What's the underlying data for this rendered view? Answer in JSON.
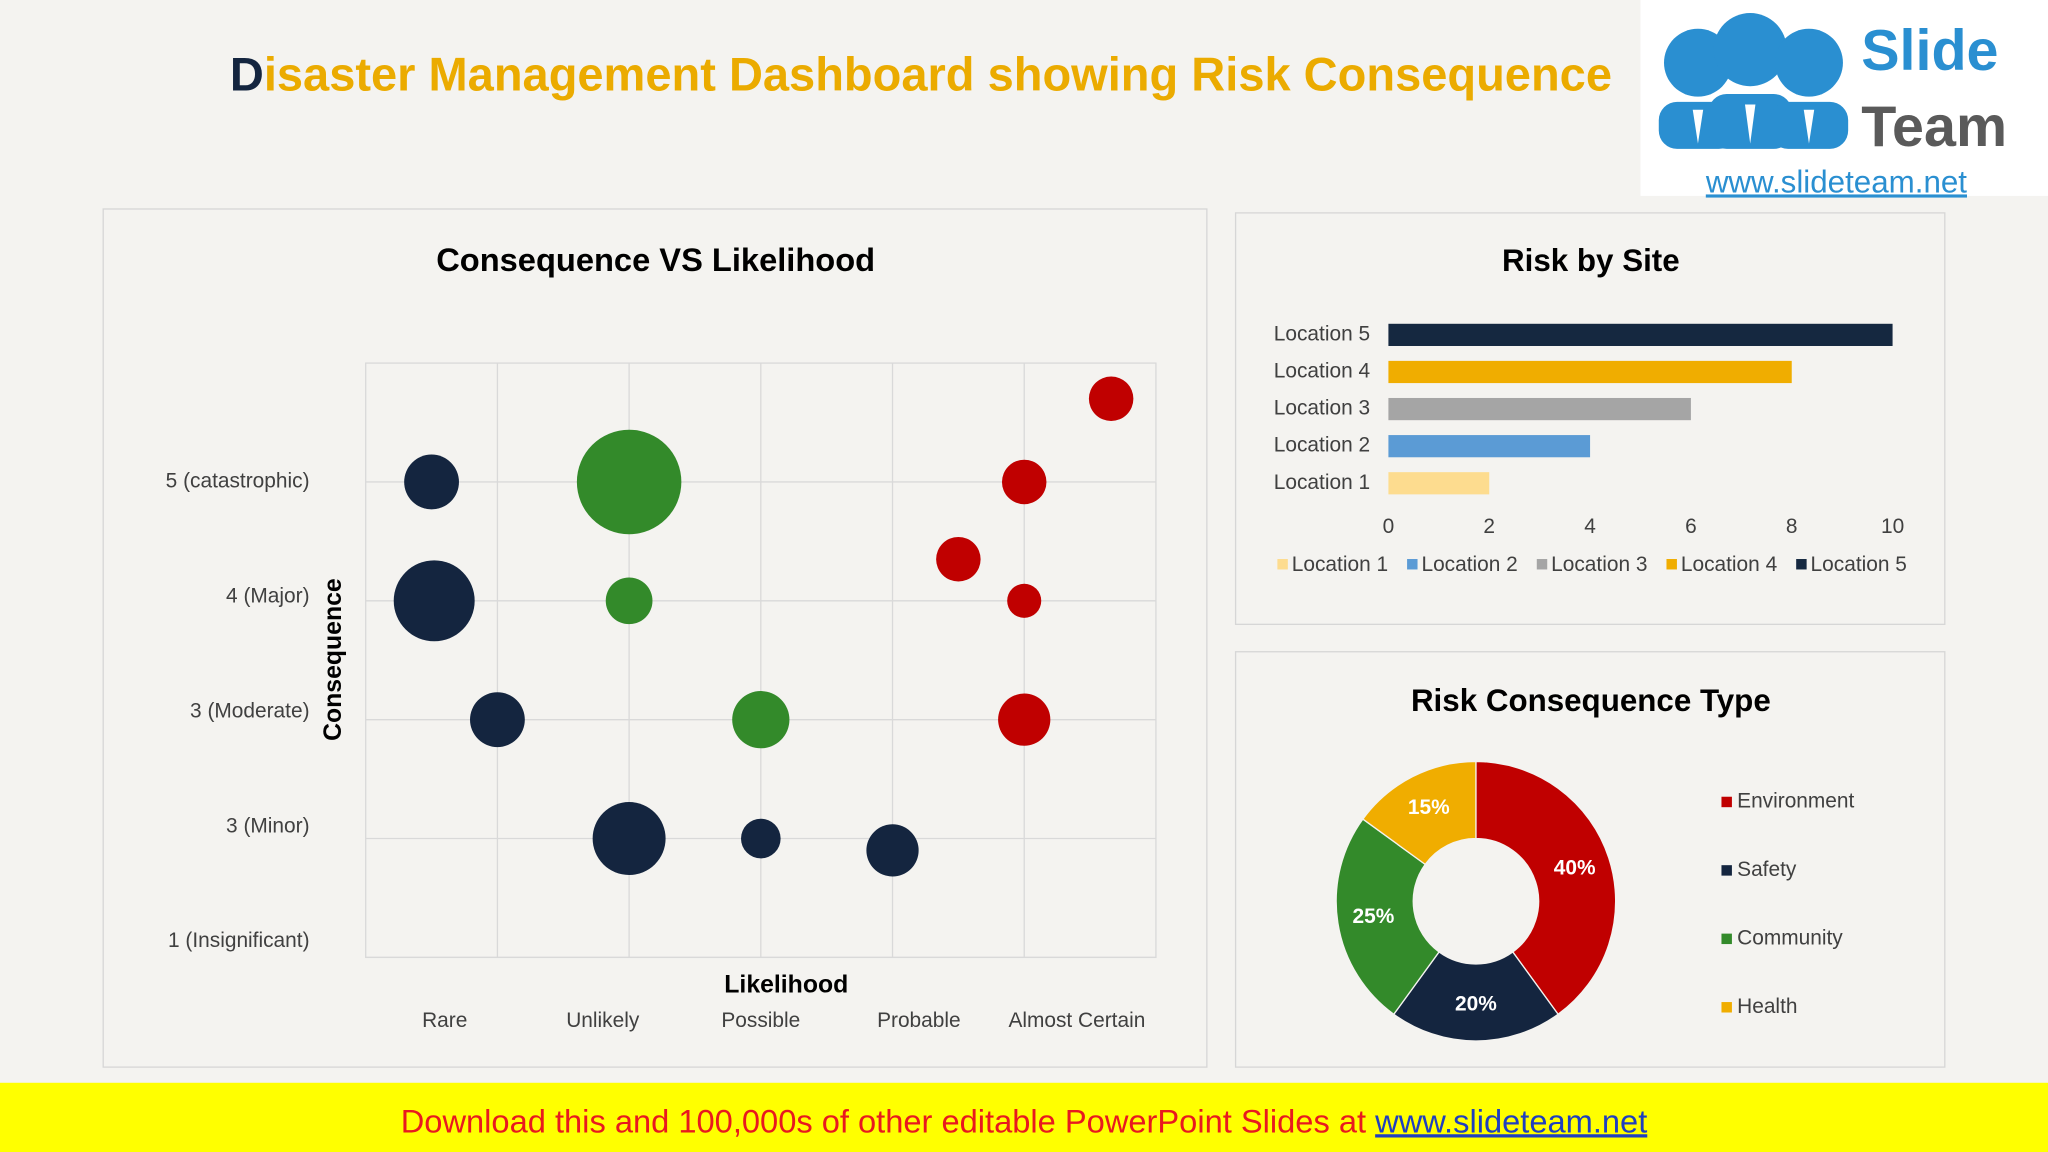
{
  "header": {
    "title_first": "D",
    "title": "isaster Management Dashboard showing Risk Consequence"
  },
  "logo": {
    "word1": "Slide",
    "word2": "Team",
    "url": "www.slideteam.net"
  },
  "banner": {
    "text": "Download this and 100,000s of other editable PowerPoint Slides at ",
    "link": "www.slideteam.net"
  },
  "chart_data": [
    {
      "type": "bubble",
      "title": "Consequence VS Likelihood",
      "x_label": "Likelihood",
      "y_label": "Consequence",
      "categories": [
        "Rare",
        "Unlikely",
        "Possible",
        "Probable",
        "Almost Certain"
      ],
      "xlim": [
        0,
        6
      ],
      "xgrid": [
        1,
        2,
        3,
        4,
        5
      ],
      "ylim": [
        0,
        5
      ],
      "yticks": [
        {
          "value": 0,
          "label": "1 (Insignificant)"
        },
        {
          "value": 1,
          "label": "3 (Minor)"
        },
        {
          "value": 2,
          "label": "3 (Moderate)"
        },
        {
          "value": 3,
          "label": "4 (Major)"
        },
        {
          "value": 4,
          "label": "5 (catastrophic)"
        }
      ],
      "grid": true,
      "series": [
        {
          "color": "#14253f",
          "x": [
            0.5,
            0.52,
            1,
            2,
            3,
            4
          ],
          "values": [
            4,
            3,
            2,
            1,
            1,
            0.9
          ],
          "sizes": [
            4.4,
            9.6,
            4.4,
            7.8,
            2.3,
            4
          ]
        },
        {
          "color": "#338a2a",
          "x": [
            2,
            2,
            3
          ],
          "values": [
            4,
            3,
            2
          ],
          "sizes": [
            16,
            3.2,
            4.8
          ]
        },
        {
          "color": "#c00000",
          "x": [
            5.66,
            5,
            4.5,
            5,
            5
          ],
          "values": [
            4.7,
            4,
            3.35,
            3,
            2
          ],
          "sizes": [
            2.9,
            2.9,
            2.9,
            1.7,
            4
          ]
        }
      ]
    },
    {
      "type": "barh",
      "title": "Risk by Site",
      "categories": [
        "Location 1",
        "Location 2",
        "Location 3",
        "Location 4",
        "Location 5"
      ],
      "values": [
        2,
        4,
        6,
        8,
        10
      ],
      "colors": [
        "#fddc8f",
        "#5b9bd5",
        "#a5a5a5",
        "#f0ad00",
        "#152840"
      ],
      "xlim": [
        0,
        10
      ],
      "xticks": [
        0,
        2,
        4,
        6,
        8,
        10
      ],
      "legend": "bottom"
    },
    {
      "type": "donut",
      "title": "Risk Consequence Type",
      "categories": [
        "Environment",
        "Safety",
        "Community",
        "Health"
      ],
      "values": [
        40,
        20,
        25,
        15
      ],
      "value_labels": [
        "40%",
        "20%",
        "25%",
        "15%"
      ],
      "colors": [
        "#c00000",
        "#14253f",
        "#338a2a",
        "#f0ad00"
      ],
      "legend": "right"
    }
  ]
}
